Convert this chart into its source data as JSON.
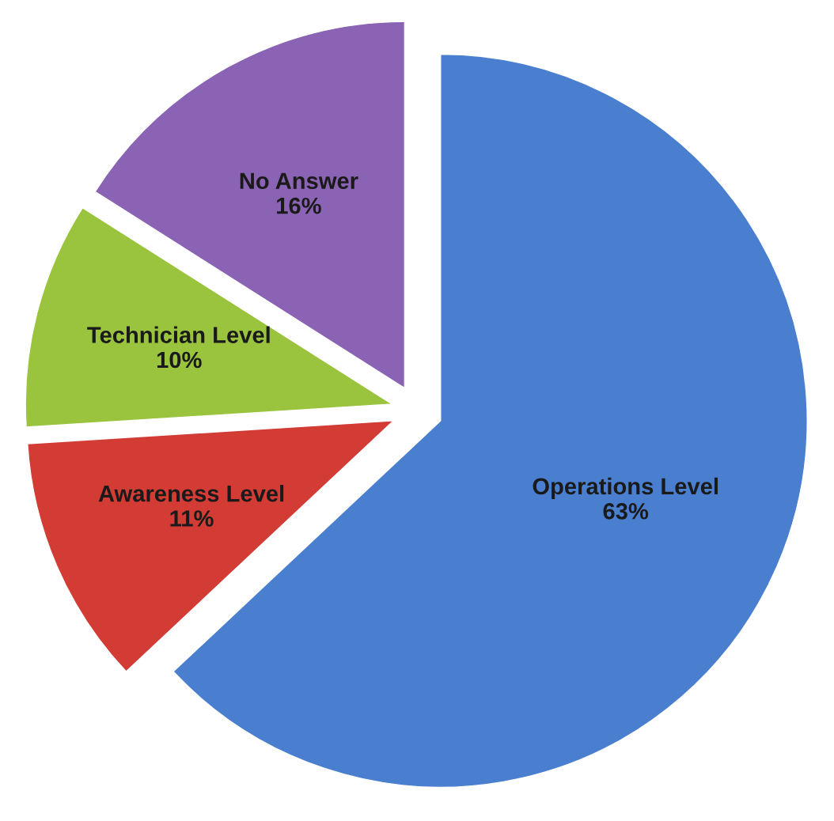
{
  "chart_data": {
    "type": "pie",
    "categories": [
      "Operations Level",
      "Awareness Level",
      "Technician Level",
      "No Answer"
    ],
    "values": [
      63,
      11,
      10,
      16
    ],
    "value_labels": [
      "63%",
      "11%",
      "10%",
      "16%"
    ],
    "colors": [
      "#4a7fcf",
      "#d33b35",
      "#9bc43e",
      "#8a63b5"
    ],
    "legend": false
  }
}
